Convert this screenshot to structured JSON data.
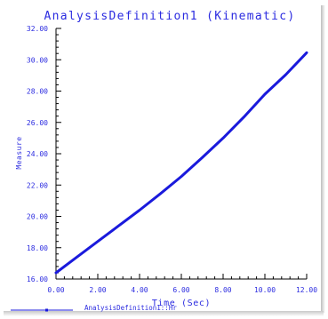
{
  "chart_data": {
    "type": "line",
    "title": "AnalysisDefinition1 (Kinematic)",
    "xlabel": "Time (Sec)",
    "ylabel": "Measure",
    "xlim": [
      0,
      12
    ],
    "ylim": [
      16,
      32
    ],
    "x_ticks": [
      "0.00",
      "2.00",
      "4.00",
      "6.00",
      "8.00",
      "10.00",
      "12.00"
    ],
    "y_ticks": [
      "16.00",
      "18.00",
      "20.00",
      "22.00",
      "24.00",
      "26.00",
      "28.00",
      "30.00",
      "32.00"
    ],
    "grid": false,
    "legend_position": "bottom-left",
    "series": [
      {
        "name": "AnalysisDefinition1::Hr",
        "color": "#1a1adc",
        "x": [
          0,
          1,
          2,
          3,
          4,
          5,
          6,
          7,
          8,
          9,
          10,
          11,
          12
        ],
        "y": [
          16.4,
          17.4,
          18.4,
          19.4,
          20.4,
          21.45,
          22.55,
          23.75,
          25.0,
          26.35,
          27.8,
          29.05,
          30.45
        ]
      }
    ]
  },
  "colors": {
    "text": "#2b2be0",
    "axis": "#000000",
    "line": "#1a1adc"
  }
}
